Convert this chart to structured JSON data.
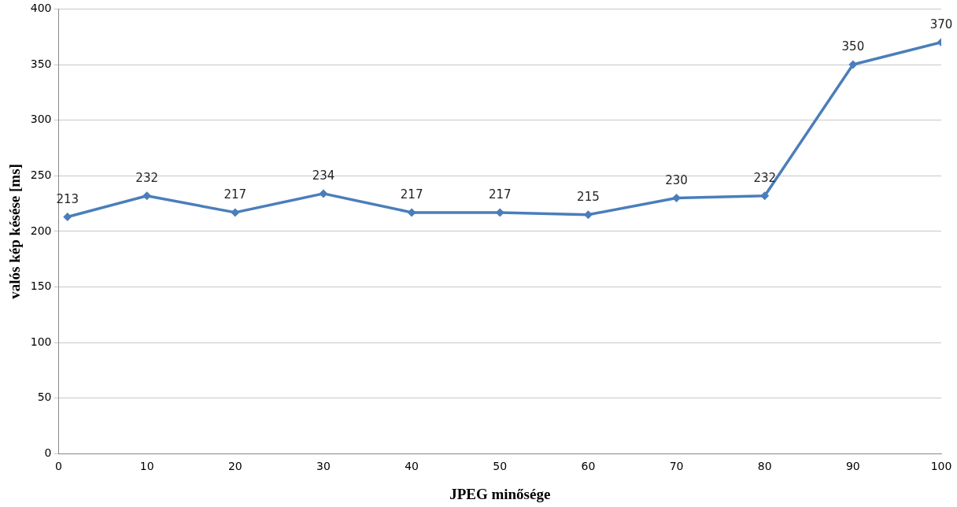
{
  "chart_data": {
    "type": "line",
    "xlabel": "JPEG minősége",
    "ylabel": "valós kép késése [ms]",
    "x": [
      1,
      10,
      20,
      30,
      40,
      50,
      60,
      70,
      80,
      90,
      100
    ],
    "series": [
      {
        "color": "#4a7ebb",
        "values": [
          213,
          232,
          217,
          234,
          217,
          217,
          215,
          230,
          232,
          350,
          370
        ]
      }
    ],
    "xlim": [
      0,
      100
    ],
    "xticks": [
      0,
      10,
      20,
      30,
      40,
      50,
      60,
      70,
      80,
      90,
      100
    ],
    "ylim": [
      0,
      400
    ],
    "yticks": [
      0,
      50,
      100,
      150,
      200,
      250,
      300,
      350,
      400
    ],
    "grid": "y",
    "legend": false,
    "marker": "diamond",
    "line_style": "solid",
    "data_labels": true
  }
}
